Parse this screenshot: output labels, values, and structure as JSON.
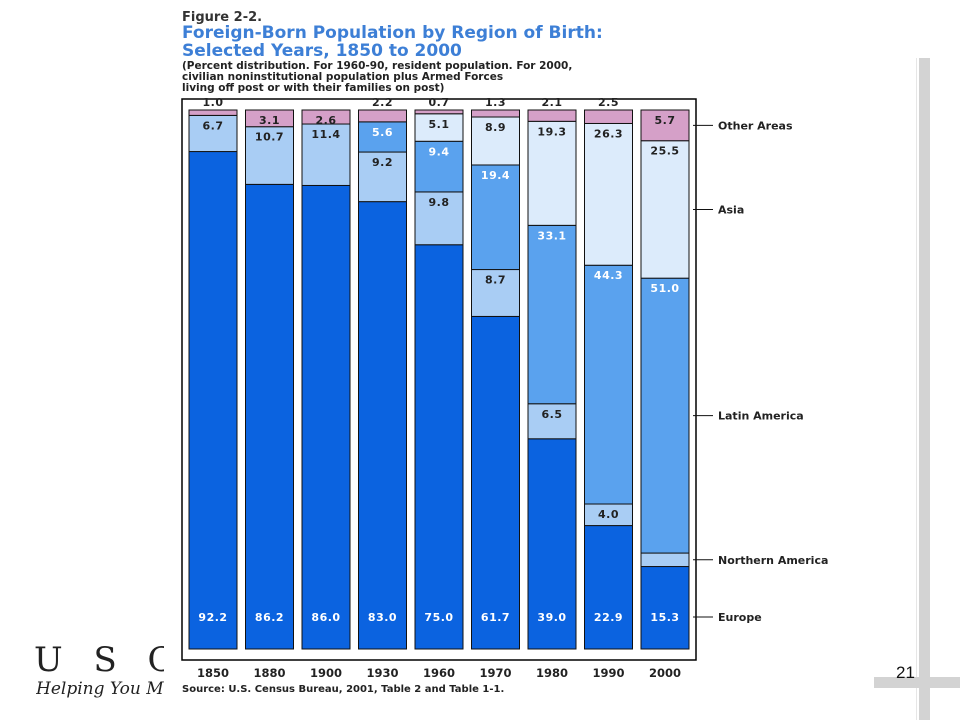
{
  "figure": {
    "label": "Figure 2-2.",
    "title_line1": "Foreign-Born Population by Region of Birth:",
    "title_line2": "Selected Years, 1850 to 2000",
    "note_line1": "(Percent distribution. For 1960-90, resident population. For 2000,",
    "note_line2": "civilian noninstitutional population plus Armed Forces",
    "note_line3": "living off post or with their families on post)",
    "source": "Source: U.S. Census Bureau, 2001, Table 2 and Table 1-1."
  },
  "logo": {
    "main": "U S C E N S",
    "sub": "Helping You Mak"
  },
  "page_number": "21",
  "colors": {
    "Europe": "#0b63e0",
    "Northern America": "#a9cdf4",
    "Latin America": "#5aa2ee",
    "Asia": "#dcebfb",
    "Other Areas": "#d5a0c8",
    "label_on_dark": "#ffffff",
    "label_on_light": "#222222"
  },
  "chart_data": {
    "type": "bar",
    "stacked": true,
    "categories": [
      "1850",
      "1880",
      "1900",
      "1930",
      "1960",
      "1970",
      "1980",
      "1990",
      "2000"
    ],
    "series": [
      {
        "name": "Europe",
        "values": [
          92.2,
          86.2,
          86.0,
          83.0,
          75.0,
          61.7,
          39.0,
          22.9,
          15.3
        ]
      },
      {
        "name": "Northern America",
        "values": [
          6.7,
          10.7,
          11.4,
          9.2,
          9.8,
          8.7,
          6.5,
          4.0,
          2.5
        ]
      },
      {
        "name": "Latin America",
        "values": [
          null,
          null,
          null,
          5.6,
          9.4,
          19.4,
          33.1,
          44.3,
          51.0
        ]
      },
      {
        "name": "Asia",
        "values": [
          null,
          null,
          null,
          null,
          5.1,
          8.9,
          19.3,
          26.3,
          25.5
        ]
      },
      {
        "name": "Other Areas",
        "values": [
          1.0,
          3.1,
          2.6,
          2.2,
          0.7,
          1.3,
          2.1,
          2.5,
          5.7
        ]
      }
    ],
    "ylim": [
      0,
      100
    ],
    "legend": "right",
    "grid": false
  }
}
